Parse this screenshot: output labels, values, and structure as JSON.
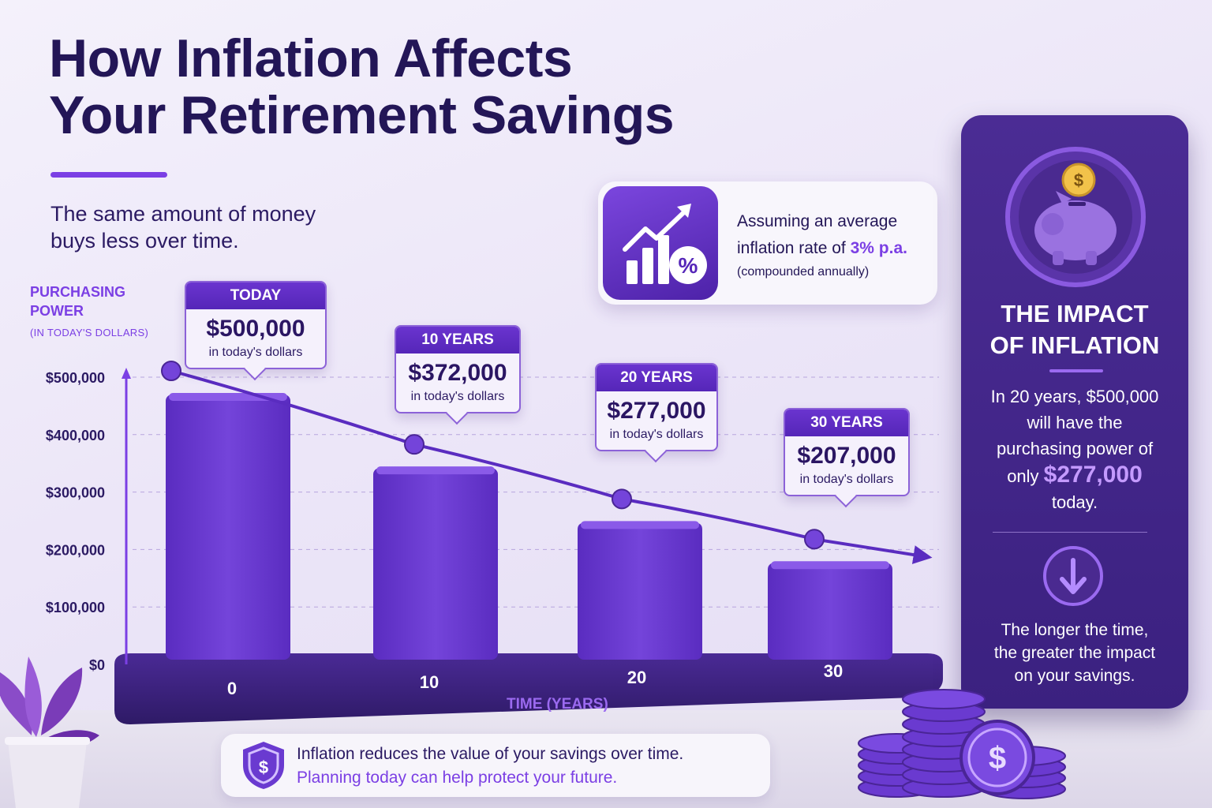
{
  "title_line1": "How Inflation Affects",
  "title_line2": "Your Retirement Savings",
  "subtitle_line1": "The same amount of money",
  "subtitle_line2": "buys less over time.",
  "y_axis_title_line1": "PURCHASING",
  "y_axis_title_line2": "POWER",
  "y_axis_title_note": "(IN TODAY'S DOLLARS)",
  "colors": {
    "accent": "#7b3fe4",
    "bar": "#6a3ad0",
    "dark": "#231657",
    "panel": "#3f2384"
  },
  "chart_data": {
    "type": "bar",
    "xlabel": "TIME (YEARS)",
    "ylabel": "PURCHASING POWER (IN TODAY'S DOLLARS)",
    "categories": [
      "0",
      "10",
      "20",
      "30"
    ],
    "values": [
      500000,
      372000,
      277000,
      207000
    ],
    "y_ticks": [
      "$0",
      "$100,000",
      "$200,000",
      "$300,000",
      "$400,000",
      "$500,000"
    ],
    "ylim": [
      0,
      500000
    ],
    "grid": true,
    "trend_line": true
  },
  "callouts": [
    {
      "head": "TODAY",
      "value": "$500,000",
      "sub": "in today's dollars"
    },
    {
      "head": "10 YEARS",
      "value": "$372,000",
      "sub": "in today's dollars"
    },
    {
      "head": "20 YEARS",
      "value": "$277,000",
      "sub": "in today's dollars"
    },
    {
      "head": "30 YEARS",
      "value": "$207,000",
      "sub": "in today's dollars"
    }
  ],
  "rate_card": {
    "line1": "Assuming an average",
    "line2_prefix": "inflation rate of",
    "rate": "3% p.a.",
    "note": "(compounded annually)",
    "icon": "chart-growth-percent-icon",
    "percent_glyph": "%"
  },
  "panel": {
    "title_line1": "THE IMPACT",
    "title_line2": "OF INFLATION",
    "body_line1": "In 20 years, $500,000",
    "body_line2": "will have the",
    "body_line3": "purchasing power of",
    "body_prefix": "only",
    "body_amount": "$277,000",
    "body_suffix": "today.",
    "foot_line1": "The longer the time,",
    "foot_line2": "the greater the impact",
    "foot_line3": "on your savings.",
    "icon_top": "piggy-bank-icon",
    "icon_mid": "arrow-down-icon",
    "coin_glyph": "$"
  },
  "bottom_note": {
    "line1": "Inflation reduces the value of your savings over time.",
    "line2": "Planning today can help protect your future.",
    "icon": "shield-dollar-icon",
    "glyph": "$"
  }
}
